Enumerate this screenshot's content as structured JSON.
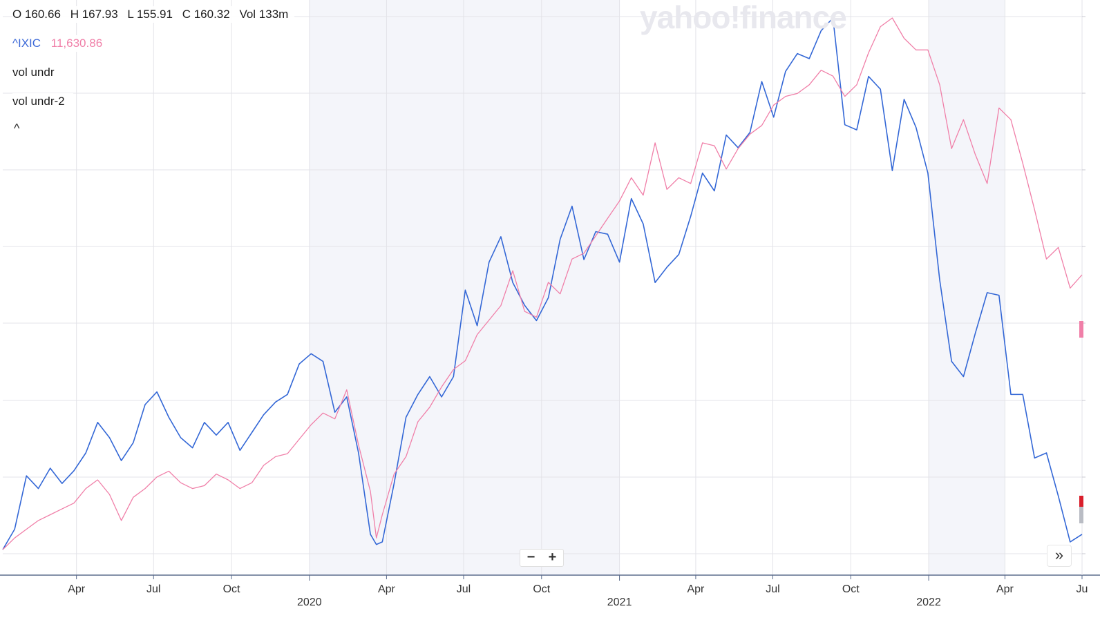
{
  "ohlc": {
    "open": "O 160.66",
    "high": "H 167.93",
    "low": "L 155.91",
    "close": "C 160.32",
    "volume": "Vol 133m"
  },
  "comparison": {
    "symbol": "^IXIC",
    "value": "11,630.86",
    "symbol_color": "#3c69d8",
    "value_color": "#f07fa8"
  },
  "indicators": [
    "vol undr",
    "vol undr-2"
  ],
  "collapse_label": "^",
  "watermark": "yahoo!finance",
  "zoom": {
    "minus": "−",
    "plus": "+"
  },
  "expand_label": "»",
  "chart_data": {
    "type": "line",
    "x_axis": {
      "ticks": [
        {
          "label": "Apr",
          "date": "2019-04-01"
        },
        {
          "label": "Jul",
          "date": "2019-07-01"
        },
        {
          "label": "Oct",
          "date": "2019-10-01"
        },
        {
          "label": "Apr",
          "date": "2020-04-01"
        },
        {
          "label": "Jul",
          "date": "2020-07-01"
        },
        {
          "label": "Oct",
          "date": "2020-10-01"
        },
        {
          "label": "Apr",
          "date": "2021-04-01"
        },
        {
          "label": "Jul",
          "date": "2021-07-01"
        },
        {
          "label": "Oct",
          "date": "2021-10-01"
        },
        {
          "label": "Apr",
          "date": "2022-04-01"
        },
        {
          "label": "Ju",
          "date": "2022-07-01"
        }
      ],
      "year_ticks": [
        {
          "label": "2020",
          "date": "2020-01-01"
        },
        {
          "label": "2021",
          "date": "2021-01-01"
        },
        {
          "label": "2022",
          "date": "2022-01-01"
        }
      ],
      "shaded_quarters": [
        [
          "2020-01-01",
          "2020-04-01"
        ],
        [
          "2020-04-01",
          "2021-01-01"
        ],
        [
          "2022-01-01",
          "2022-04-01"
        ]
      ],
      "range": [
        "2019-01-04",
        "2022-07-01"
      ]
    },
    "series": [
      {
        "name": "",
        "color": "#3367d6",
        "dates": [
          "2019-01-04",
          "2019-01-18",
          "2019-02-01",
          "2019-02-15",
          "2019-03-01",
          "2019-03-15",
          "2019-03-29",
          "2019-04-12",
          "2019-04-26",
          "2019-05-10",
          "2019-05-24",
          "2019-06-07",
          "2019-06-21",
          "2019-07-05",
          "2019-07-19",
          "2019-08-02",
          "2019-08-16",
          "2019-08-30",
          "2019-09-13",
          "2019-09-27",
          "2019-10-11",
          "2019-10-25",
          "2019-11-08",
          "2019-11-22",
          "2019-12-06",
          "2019-12-20",
          "2020-01-03",
          "2020-01-17",
          "2020-01-31",
          "2020-02-14",
          "2020-02-28",
          "2020-03-13",
          "2020-03-20",
          "2020-03-27",
          "2020-04-10",
          "2020-04-24",
          "2020-05-08",
          "2020-05-22",
          "2020-06-05",
          "2020-06-19",
          "2020-07-03",
          "2020-07-17",
          "2020-07-31",
          "2020-08-14",
          "2020-08-28",
          "2020-09-11",
          "2020-09-25",
          "2020-10-09",
          "2020-10-23",
          "2020-11-06",
          "2020-11-20",
          "2020-12-04",
          "2020-12-18",
          "2021-01-01",
          "2021-01-15",
          "2021-01-29",
          "2021-02-12",
          "2021-02-26",
          "2021-03-12",
          "2021-03-26",
          "2021-04-09",
          "2021-04-23",
          "2021-05-07",
          "2021-05-21",
          "2021-06-04",
          "2021-06-18",
          "2021-07-02",
          "2021-07-16",
          "2021-07-30",
          "2021-08-13",
          "2021-08-27",
          "2021-09-10",
          "2021-09-24",
          "2021-10-08",
          "2021-10-22",
          "2021-11-05",
          "2021-11-19",
          "2021-12-03",
          "2021-12-17",
          "2021-12-31",
          "2022-01-14",
          "2022-01-28",
          "2022-02-11",
          "2022-02-25",
          "2022-03-11",
          "2022-03-25",
          "2022-04-08",
          "2022-04-22",
          "2022-05-06",
          "2022-05-20",
          "2022-06-03",
          "2022-06-17",
          "2022-07-01"
        ],
        "values": [
          102,
          110,
          131,
          126,
          134,
          128,
          133,
          140,
          152,
          146,
          137,
          144,
          159,
          164,
          154,
          146,
          142,
          152,
          147,
          152,
          141,
          148,
          155,
          160,
          163,
          175,
          179,
          176,
          156,
          162,
          140,
          108,
          104,
          105,
          128,
          154,
          163,
          170,
          162,
          170,
          204,
          190,
          215,
          225,
          207,
          198,
          192,
          201,
          224,
          237,
          216,
          227,
          226,
          215,
          240,
          230,
          207,
          213,
          218,
          233,
          250,
          243,
          265,
          260,
          266,
          286,
          272,
          290,
          297,
          295,
          306,
          311,
          269,
          267,
          288,
          283,
          251,
          279,
          268,
          250,
          208,
          176,
          170,
          187,
          203,
          202,
          163,
          163,
          138,
          140,
          123,
          105,
          108
        ]
      },
      {
        "name": "^IXIC",
        "color": "#f07fa8",
        "dates": [
          "2019-01-04",
          "2019-01-18",
          "2019-02-01",
          "2019-02-15",
          "2019-03-01",
          "2019-03-15",
          "2019-03-29",
          "2019-04-12",
          "2019-04-26",
          "2019-05-10",
          "2019-05-24",
          "2019-06-07",
          "2019-06-21",
          "2019-07-05",
          "2019-07-19",
          "2019-08-02",
          "2019-08-16",
          "2019-08-30",
          "2019-09-13",
          "2019-09-27",
          "2019-10-11",
          "2019-10-25",
          "2019-11-08",
          "2019-11-22",
          "2019-12-06",
          "2019-12-20",
          "2020-01-03",
          "2020-01-17",
          "2020-01-31",
          "2020-02-14",
          "2020-02-28",
          "2020-03-13",
          "2020-03-20",
          "2020-03-27",
          "2020-04-10",
          "2020-04-24",
          "2020-05-08",
          "2020-05-22",
          "2020-06-05",
          "2020-06-19",
          "2020-07-03",
          "2020-07-17",
          "2020-07-31",
          "2020-08-14",
          "2020-08-28",
          "2020-09-11",
          "2020-09-25",
          "2020-10-09",
          "2020-10-23",
          "2020-11-06",
          "2020-11-20",
          "2020-12-04",
          "2020-12-18",
          "2021-01-01",
          "2021-01-15",
          "2021-01-29",
          "2021-02-12",
          "2021-02-26",
          "2021-03-12",
          "2021-03-26",
          "2021-04-09",
          "2021-04-23",
          "2021-05-07",
          "2021-05-21",
          "2021-06-04",
          "2021-06-18",
          "2021-07-02",
          "2021-07-16",
          "2021-07-30",
          "2021-08-13",
          "2021-08-27",
          "2021-09-10",
          "2021-09-24",
          "2021-10-08",
          "2021-10-22",
          "2021-11-05",
          "2021-11-19",
          "2021-12-03",
          "2021-12-17",
          "2021-12-31",
          "2022-01-14",
          "2022-01-28",
          "2022-02-11",
          "2022-02-25",
          "2022-03-11",
          "2022-03-25",
          "2022-04-08",
          "2022-04-22",
          "2022-05-06",
          "2022-05-20",
          "2022-06-03",
          "2022-06-17",
          "2022-07-01"
        ],
        "values": [
          6900,
          7100,
          7250,
          7400,
          7500,
          7600,
          7700,
          7950,
          8100,
          7850,
          7400,
          7800,
          7950,
          8150,
          8250,
          8050,
          7950,
          8000,
          8200,
          8100,
          7950,
          8050,
          8350,
          8500,
          8550,
          8800,
          9050,
          9250,
          9150,
          9650,
          8700,
          7900,
          7100,
          7500,
          8200,
          8500,
          9100,
          9350,
          9700,
          10000,
          10150,
          10600,
          10850,
          11100,
          11700,
          11000,
          10900,
          11500,
          11300,
          11900,
          12000,
          12300,
          12600,
          12900,
          13300,
          13000,
          13900,
          13100,
          13300,
          13200,
          13900,
          13850,
          13450,
          13800,
          14050,
          14200,
          14550,
          14700,
          14750,
          14900,
          15150,
          15050,
          14700,
          14900,
          15450,
          15900,
          16050,
          15700,
          15500,
          15500,
          14900,
          13800,
          14300,
          13700,
          13200,
          14500,
          14300,
          13550,
          12750,
          11900,
          12100,
          11400,
          11630
        ]
      }
    ]
  }
}
